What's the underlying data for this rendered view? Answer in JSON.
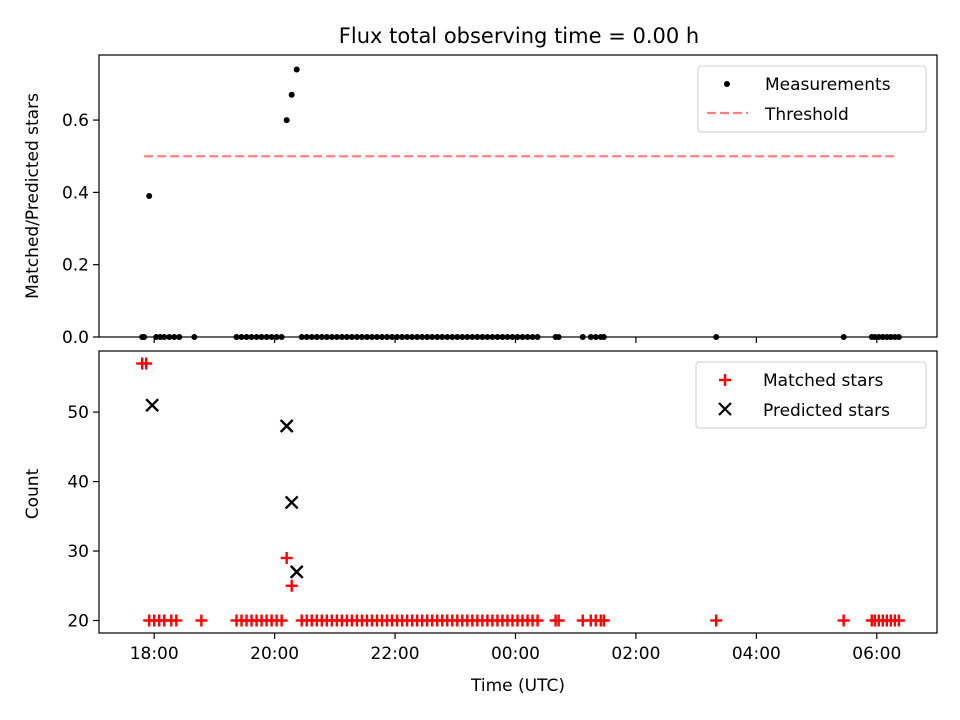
{
  "chart_data": [
    {
      "type": "scatter",
      "title": "Flux total observing time = 0.00 h",
      "ylabel": "Matched/Predicted stars",
      "xlabel": "",
      "ylim": [
        0,
        0.78
      ],
      "yticks": [
        0.0,
        0.2,
        0.4,
        0.6
      ],
      "ytick_labels": [
        "0.0",
        "0.2",
        "0.4",
        "0.6"
      ],
      "legend": {
        "placement": "top-right",
        "entries": [
          "Measurements",
          "Threshold"
        ]
      },
      "grid": false,
      "threshold": {
        "name": "Threshold",
        "value": 0.5,
        "x_range": [
          "17:50",
          "06:18"
        ],
        "color": "#ff8080"
      },
      "series": [
        {
          "name": "Measurements",
          "color": "#000000",
          "marker": "dot",
          "points": [
            [
              "17:55",
              0.39
            ],
            [
              "20:12",
              0.6
            ],
            [
              "20:17",
              0.67
            ],
            [
              "20:22",
              0.74
            ],
            [
              "17:48",
              0
            ],
            [
              "17:50",
              0
            ],
            [
              "18:02",
              0
            ],
            [
              "18:06",
              0
            ],
            [
              "18:10",
              0
            ],
            [
              "18:15",
              0
            ],
            [
              "18:20",
              0
            ],
            [
              "18:25",
              0
            ],
            [
              "18:40",
              0
            ],
            [
              "19:22",
              0
            ],
            [
              "19:27",
              0
            ],
            [
              "19:32",
              0
            ],
            [
              "19:37",
              0
            ],
            [
              "19:42",
              0
            ],
            [
              "19:47",
              0
            ],
            [
              "19:52",
              0
            ],
            [
              "19:57",
              0
            ],
            [
              "20:02",
              0
            ],
            [
              "20:07",
              0
            ],
            [
              "20:27",
              0
            ],
            [
              "20:32",
              0
            ],
            [
              "20:37",
              0
            ],
            [
              "20:42",
              0
            ],
            [
              "20:47",
              0
            ],
            [
              "20:52",
              0
            ],
            [
              "20:57",
              0
            ],
            [
              "21:02",
              0
            ],
            [
              "21:07",
              0
            ],
            [
              "21:12",
              0
            ],
            [
              "21:17",
              0
            ],
            [
              "21:22",
              0
            ],
            [
              "21:27",
              0
            ],
            [
              "21:32",
              0
            ],
            [
              "21:37",
              0
            ],
            [
              "21:42",
              0
            ],
            [
              "21:47",
              0
            ],
            [
              "21:52",
              0
            ],
            [
              "21:57",
              0
            ],
            [
              "22:02",
              0
            ],
            [
              "22:07",
              0
            ],
            [
              "22:12",
              0
            ],
            [
              "22:17",
              0
            ],
            [
              "22:22",
              0
            ],
            [
              "22:27",
              0
            ],
            [
              "22:32",
              0
            ],
            [
              "22:37",
              0
            ],
            [
              "22:42",
              0
            ],
            [
              "22:47",
              0
            ],
            [
              "22:52",
              0
            ],
            [
              "22:57",
              0
            ],
            [
              "23:02",
              0
            ],
            [
              "23:07",
              0
            ],
            [
              "23:12",
              0
            ],
            [
              "23:17",
              0
            ],
            [
              "23:22",
              0
            ],
            [
              "23:27",
              0
            ],
            [
              "23:32",
              0
            ],
            [
              "23:37",
              0
            ],
            [
              "23:42",
              0
            ],
            [
              "23:47",
              0
            ],
            [
              "23:52",
              0
            ],
            [
              "23:57",
              0
            ],
            [
              "00:02",
              0
            ],
            [
              "00:07",
              0
            ],
            [
              "00:12",
              0
            ],
            [
              "00:17",
              0
            ],
            [
              "00:22",
              0
            ],
            [
              "00:40",
              0
            ],
            [
              "00:43",
              0
            ],
            [
              "01:07",
              0
            ],
            [
              "01:15",
              0
            ],
            [
              "01:20",
              0
            ],
            [
              "01:25",
              0
            ],
            [
              "01:28",
              0
            ],
            [
              "03:20",
              0
            ],
            [
              "05:27",
              0
            ],
            [
              "05:55",
              0
            ],
            [
              "05:58",
              0
            ],
            [
              "06:02",
              0
            ],
            [
              "06:06",
              0
            ],
            [
              "06:10",
              0
            ],
            [
              "06:14",
              0
            ],
            [
              "06:18",
              0
            ],
            [
              "06:22",
              0
            ]
          ]
        }
      ]
    },
    {
      "type": "scatter",
      "title": "",
      "ylabel": "Count",
      "xlabel": "Time (UTC)",
      "ylim": [
        18.2,
        58.8
      ],
      "yticks": [
        20,
        30,
        40,
        50
      ],
      "ytick_labels": [
        "20",
        "30",
        "40",
        "50"
      ],
      "xlim": [
        "17:05",
        "07:00"
      ],
      "xticks": [
        "18:00",
        "20:00",
        "22:00",
        "00:00",
        "02:00",
        "04:00",
        "06:00"
      ],
      "xtick_labels": [
        "18:00",
        "20:00",
        "22:00",
        "00:00",
        "02:00",
        "04:00",
        "06:00"
      ],
      "legend": {
        "placement": "top-right",
        "entries": [
          "Matched stars",
          "Predicted stars"
        ]
      },
      "grid": false,
      "series": [
        {
          "name": "Matched stars",
          "color": "#ff0000",
          "marker": "plus",
          "points": [
            [
              "17:48",
              57
            ],
            [
              "17:52",
              57
            ],
            [
              "20:12",
              29
            ],
            [
              "20:17",
              25
            ],
            [
              "17:55",
              20
            ],
            [
              "18:00",
              20
            ],
            [
              "18:05",
              20
            ],
            [
              "18:10",
              20
            ],
            [
              "18:17",
              20
            ],
            [
              "18:22",
              20
            ],
            [
              "18:47",
              20
            ],
            [
              "19:22",
              20
            ],
            [
              "19:27",
              20
            ],
            [
              "19:32",
              20
            ],
            [
              "19:37",
              20
            ],
            [
              "19:42",
              20
            ],
            [
              "19:47",
              20
            ],
            [
              "19:52",
              20
            ],
            [
              "19:57",
              20
            ],
            [
              "20:02",
              20
            ],
            [
              "20:07",
              20
            ],
            [
              "20:27",
              20
            ],
            [
              "20:32",
              20
            ],
            [
              "20:37",
              20
            ],
            [
              "20:42",
              20
            ],
            [
              "20:47",
              20
            ],
            [
              "20:52",
              20
            ],
            [
              "20:57",
              20
            ],
            [
              "21:02",
              20
            ],
            [
              "21:07",
              20
            ],
            [
              "21:12",
              20
            ],
            [
              "21:17",
              20
            ],
            [
              "21:22",
              20
            ],
            [
              "21:27",
              20
            ],
            [
              "21:32",
              20
            ],
            [
              "21:37",
              20
            ],
            [
              "21:42",
              20
            ],
            [
              "21:47",
              20
            ],
            [
              "21:52",
              20
            ],
            [
              "21:57",
              20
            ],
            [
              "22:02",
              20
            ],
            [
              "22:07",
              20
            ],
            [
              "22:12",
              20
            ],
            [
              "22:17",
              20
            ],
            [
              "22:22",
              20
            ],
            [
              "22:27",
              20
            ],
            [
              "22:32",
              20
            ],
            [
              "22:37",
              20
            ],
            [
              "22:42",
              20
            ],
            [
              "22:47",
              20
            ],
            [
              "22:52",
              20
            ],
            [
              "22:57",
              20
            ],
            [
              "23:02",
              20
            ],
            [
              "23:07",
              20
            ],
            [
              "23:12",
              20
            ],
            [
              "23:17",
              20
            ],
            [
              "23:22",
              20
            ],
            [
              "23:27",
              20
            ],
            [
              "23:32",
              20
            ],
            [
              "23:37",
              20
            ],
            [
              "23:42",
              20
            ],
            [
              "23:47",
              20
            ],
            [
              "23:52",
              20
            ],
            [
              "23:57",
              20
            ],
            [
              "00:02",
              20
            ],
            [
              "00:07",
              20
            ],
            [
              "00:12",
              20
            ],
            [
              "00:17",
              20
            ],
            [
              "00:22",
              20
            ],
            [
              "00:40",
              20
            ],
            [
              "00:43",
              20
            ],
            [
              "01:07",
              20
            ],
            [
              "01:15",
              20
            ],
            [
              "01:20",
              20
            ],
            [
              "01:25",
              20
            ],
            [
              "01:28",
              20
            ],
            [
              "03:20",
              20
            ],
            [
              "05:27",
              20
            ],
            [
              "05:55",
              20
            ],
            [
              "05:58",
              20
            ],
            [
              "06:02",
              20
            ],
            [
              "06:06",
              20
            ],
            [
              "06:10",
              20
            ],
            [
              "06:14",
              20
            ],
            [
              "06:18",
              20
            ],
            [
              "06:22",
              20
            ]
          ]
        },
        {
          "name": "Predicted stars",
          "color": "#000000",
          "marker": "x",
          "points": [
            [
              "17:58",
              51
            ],
            [
              "20:12",
              48
            ],
            [
              "20:17",
              37
            ],
            [
              "20:22",
              27
            ]
          ]
        }
      ]
    }
  ]
}
